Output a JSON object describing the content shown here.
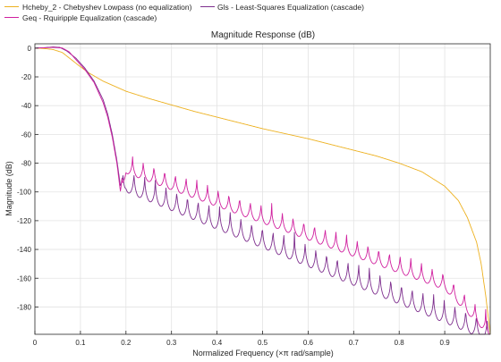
{
  "legend": {
    "entries": [
      {
        "label": "Hcheby_2 - Chebyshev Lowpass (no equalization)",
        "color": "#EDB120"
      },
      {
        "label": "Gls - Least-Squares Equalization (cascade)",
        "color": "#7E2F8E"
      },
      {
        "label": "Geq - Rquiripple Equalization (cascade)",
        "color": "#D0209F"
      }
    ]
  },
  "chart_data": {
    "type": "line",
    "title": "Magnitude Response (dB)",
    "xlabel": "Normalized Frequency (×π rad/sample)",
    "ylabel": "Magnitude (dB)",
    "xlim": [
      0,
      1
    ],
    "ylim": [
      -199,
      3
    ],
    "xticks": [
      "0",
      "0.1",
      "0.2",
      "0.3",
      "0.4",
      "0.5",
      "0.6",
      "0.7",
      "0.8",
      "0.9"
    ],
    "xtick_values": [
      0,
      0.1,
      0.2,
      0.3,
      0.4,
      0.5,
      0.6,
      0.7,
      0.8,
      0.9
    ],
    "yticks": [
      "0",
      "-20",
      "-40",
      "-60",
      "-80",
      "-100",
      "-120",
      "-140",
      "-160",
      "-180"
    ],
    "ytick_values": [
      0,
      -20,
      -40,
      -60,
      -80,
      -100,
      -120,
      -140,
      -160,
      -180
    ],
    "grid": true,
    "legend_position": "outside-top",
    "series": [
      {
        "name": "Hcheby_2 - Chebyshev Lowpass (no equalization)",
        "color": "#EDB120",
        "x": [
          0,
          0.02,
          0.04,
          0.06,
          0.08,
          0.1,
          0.12,
          0.15,
          0.2,
          0.25,
          0.3,
          0.35,
          0.4,
          0.45,
          0.5,
          0.55,
          0.6,
          0.65,
          0.7,
          0.75,
          0.8,
          0.85,
          0.9,
          0.93,
          0.95,
          0.97,
          0.98,
          0.99,
          1.0
        ],
        "y": [
          0,
          -0.3,
          -1,
          -3,
          -8,
          -13,
          -17.5,
          -23,
          -30,
          -35,
          -39.5,
          -44,
          -48,
          -52,
          -56,
          -59.5,
          -63,
          -67,
          -71,
          -75,
          -80,
          -86,
          -96,
          -106,
          -118,
          -135,
          -150,
          -172,
          -199
        ]
      },
      {
        "name": "Gls - Least-Squares Equalization (cascade)",
        "color": "#7E2F8E",
        "x": [
          0,
          0.02,
          0.04,
          0.055,
          0.07,
          0.09,
          0.11,
          0.13,
          0.15,
          0.16,
          0.17,
          0.18,
          0.188,
          0.193,
          0.194,
          0.2,
          1.0
        ],
        "y": [
          0,
          0.3,
          0.8,
          0.5,
          -2,
          -7,
          -14,
          -23,
          -36,
          -46,
          -60,
          -78,
          -96,
          -91,
          -84,
          -80,
          -184
        ],
        "ripple": {
          "start": 0.194,
          "period": 0.0235,
          "depth": 20
        }
      },
      {
        "name": "Geq - Rquiripple Equalization (cascade)",
        "color": "#D0209F",
        "x": [
          0,
          0.02,
          0.04,
          0.06,
          0.075,
          0.09,
          0.11,
          0.13,
          0.15,
          0.16,
          0.17,
          0.18,
          0.188,
          0.19,
          0.191,
          0.2,
          0.9,
          1.0
        ],
        "y": [
          0,
          0.2,
          0.5,
          0.1,
          -2.5,
          -8,
          -15,
          -24,
          -38,
          -48,
          -62,
          -80,
          -100,
          -94,
          -87,
          -71,
          -152,
          -185
        ],
        "ripple": {
          "start": 0.191,
          "period": 0.0235,
          "depth": 16
        }
      }
    ]
  }
}
